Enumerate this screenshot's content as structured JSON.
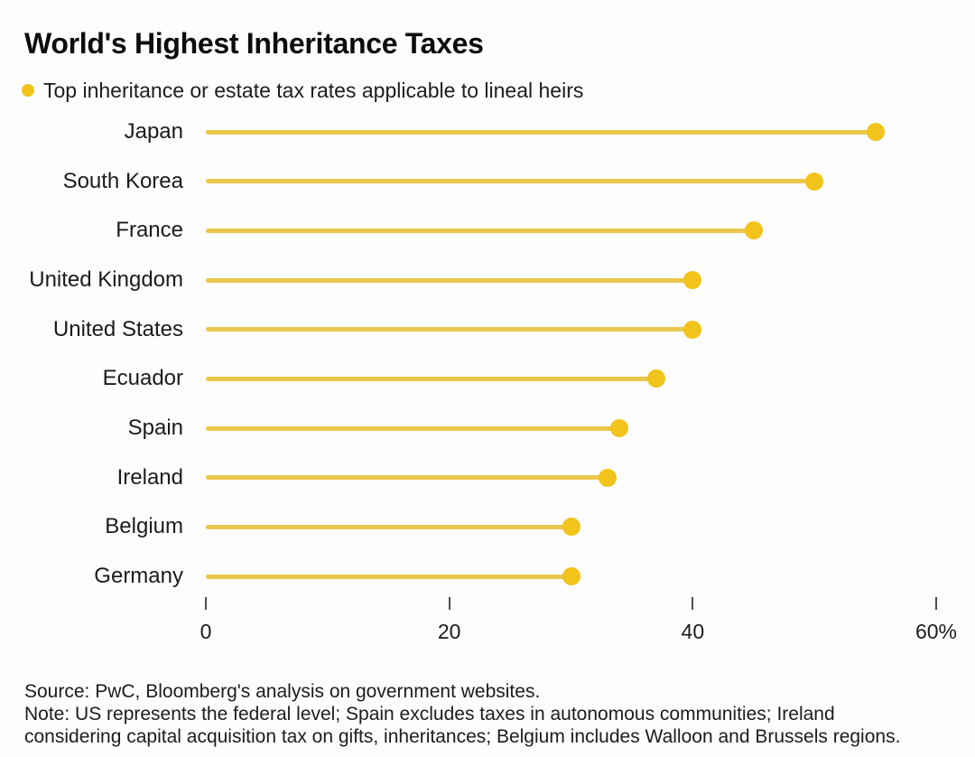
{
  "title": "World's Highest Inheritance Taxes",
  "legend": {
    "label": "Top inheritance or estate tax rates applicable to lineal heirs"
  },
  "colors": {
    "dot": "#F2C31A",
    "stem": "#EAC64B",
    "tick": "#4d4d4d",
    "text": "#1b1b1b"
  },
  "chart_data": {
    "type": "bar",
    "style": "lollipop",
    "orientation": "horizontal",
    "title": "World's Highest Inheritance Taxes",
    "subtitle_legend": "Top inheritance or estate tax rates applicable to lineal heirs",
    "categories": [
      "Japan",
      "South Korea",
      "France",
      "United Kingdom",
      "United States",
      "Ecuador",
      "Spain",
      "Ireland",
      "Belgium",
      "Germany"
    ],
    "values": [
      55,
      50,
      45,
      40,
      40,
      37,
      34,
      33,
      30,
      30
    ],
    "unit": "%",
    "xlabel": "",
    "ylabel": "",
    "xlim": [
      0,
      60
    ],
    "xtick_values": [
      0,
      20,
      40,
      60
    ],
    "xtick_labels": [
      "0",
      "20",
      "40",
      "60%"
    ],
    "grid": false,
    "legend_position": "top-left"
  },
  "footer": {
    "source": "Source: PwC, Bloomberg's analysis on government websites.",
    "note_line1": "Note: US represents the federal level; Spain excludes taxes in autonomous communities; Ireland",
    "note_line2": "considering capital acquisition tax on gifts, inheritances; Belgium includes Walloon and Brussels regions."
  }
}
